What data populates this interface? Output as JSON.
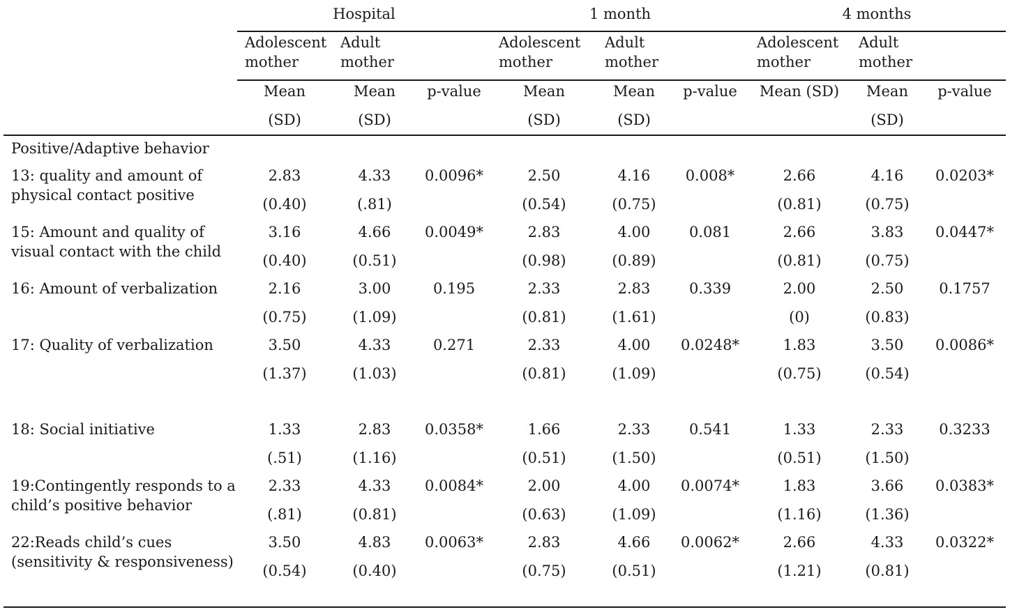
{
  "periods": [
    "Hospital",
    "1 month",
    "4 months"
  ],
  "groups": {
    "hospital": [
      "Adolescent\nmother",
      "Adult\nmother"
    ],
    "month1": [
      "Adolescent\nmother",
      "Adult\nmother"
    ],
    "month4": [
      "Adolescent\nmother",
      "Adult\nmother"
    ]
  },
  "stats": {
    "mean": "Mean",
    "sd": "(SD)",
    "pvalue": "p-value",
    "mean_sd": "Mean (SD)"
  },
  "section_title": "Positive/Adaptive behavior",
  "rows": [
    {
      "label": "13: quality and amount of\nphysical contact positive",
      "means": [
        "2.83",
        "4.33",
        "0.0096*",
        "2.50",
        "4.16",
        "0.008*",
        "2.66",
        "4.16",
        "0.0203*"
      ],
      "sds": [
        "(0.40)",
        "(.81)",
        "",
        "(0.54)",
        "(0.75)",
        "",
        "(0.81)",
        "(0.75)",
        ""
      ]
    },
    {
      "label": "15: Amount and quality of\nvisual contact with the child",
      "means": [
        "3.16",
        "4.66",
        "0.0049*",
        "2.83",
        "4.00",
        "0.081",
        "2.66",
        "3.83",
        "0.0447*"
      ],
      "sds": [
        "(0.40)",
        "(0.51)",
        "",
        "(0.98)",
        "(0.89)",
        "",
        "(0.81)",
        "(0.75)",
        ""
      ]
    },
    {
      "label": "16: Amount of verbalization",
      "means": [
        "2.16",
        "3.00",
        "0.195",
        "2.33",
        "2.83",
        "0.339",
        "2.00",
        "2.50",
        "0.1757"
      ],
      "sds": [
        "(0.75)",
        "(1.09)",
        "",
        "(0.81)",
        "(1.61)",
        "",
        "(0)",
        "(0.83)",
        ""
      ]
    },
    {
      "label": "17: Quality of verbalization",
      "means": [
        "3.50",
        "4.33",
        "0.271",
        "2.33",
        "4.00",
        "0.0248*",
        "1.83",
        "3.50",
        "0.0086*"
      ],
      "sds": [
        "(1.37)",
        "(1.03)",
        "",
        "(0.81)",
        "(1.09)",
        "",
        "(0.75)",
        "(0.54)",
        ""
      ]
    },
    {
      "label": "18: Social initiative",
      "means": [
        "1.33",
        "2.83",
        "0.0358*",
        "1.66",
        "2.33",
        "0.541",
        "1.33",
        "2.33",
        "0.3233"
      ],
      "sds": [
        "(.51)",
        "(1.16)",
        "",
        "(0.51)",
        "(1.50)",
        "",
        "(0.51)",
        "(1.50)",
        ""
      ]
    },
    {
      "label": "19:Contingently responds to a\nchild’s positive behavior",
      "means": [
        "2.33",
        "4.33",
        "0.0084*",
        "2.00",
        "4.00",
        "0.0074*",
        "1.83",
        "3.66",
        "0.0383*"
      ],
      "sds": [
        "(.81)",
        "(0.81)",
        "",
        "(0.63)",
        "(1.09)",
        "",
        "(1.16)",
        "(1.36)",
        ""
      ]
    },
    {
      "label": "22:Reads child’s cues\n(sensitivity & responsiveness)",
      "means": [
        "3.50",
        "4.83",
        "0.0063*",
        "2.83",
        "4.66",
        "0.0062*",
        "2.66",
        "4.33",
        "0.0322*"
      ],
      "sds": [
        "(0.54)",
        "(0.40)",
        "",
        "(0.75)",
        "(0.51)",
        "",
        "(1.21)",
        "(0.81)",
        ""
      ]
    }
  ]
}
